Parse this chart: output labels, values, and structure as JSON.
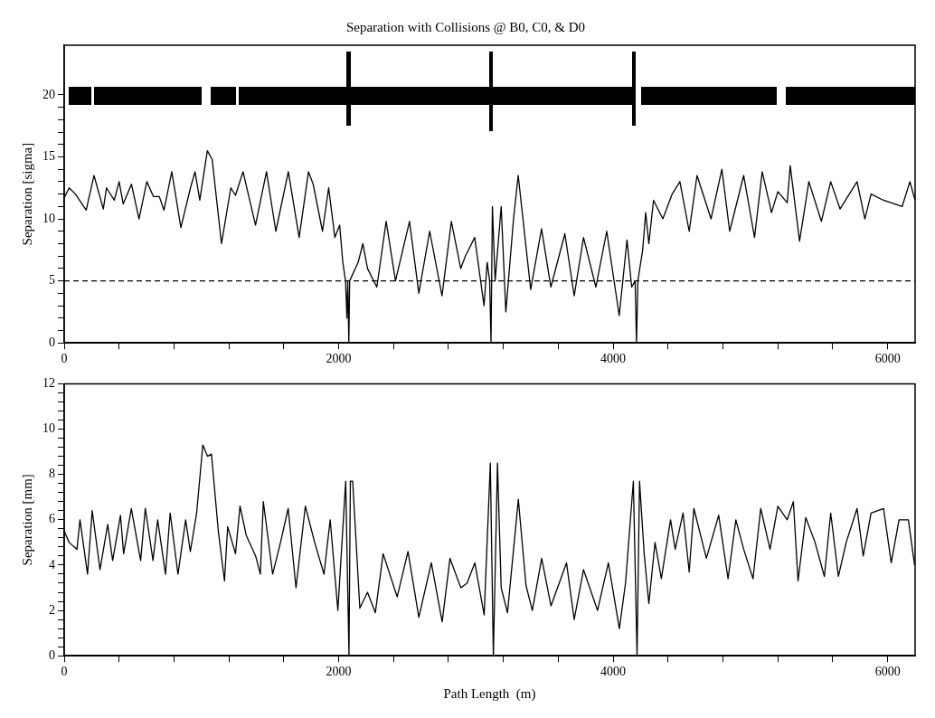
{
  "chart_data": [
    {
      "type": "line",
      "title": "Separation with Collisions @ B0, C0, & D0",
      "ylabel": "Separation [sigma]",
      "marker": "none",
      "grid": false,
      "legend": false,
      "xlim": [
        0,
        6200
      ],
      "ylim": [
        0,
        24
      ],
      "xticks": [
        0,
        {
          "value": 400,
          "label": null
        },
        {
          "value": 800,
          "label": null
        },
        {
          "value": 1200,
          "label": null
        },
        {
          "value": 1600,
          "label": null
        },
        2000,
        {
          "value": 2400,
          "label": null
        },
        {
          "value": 2800,
          "label": null
        },
        {
          "value": 3200,
          "label": null
        },
        {
          "value": 3600,
          "label": null
        },
        4000,
        {
          "value": 4400,
          "label": null
        },
        {
          "value": 4800,
          "label": null
        },
        {
          "value": 5200,
          "label": null
        },
        {
          "value": 5600,
          "label": null
        },
        6000
      ],
      "yticks": [
        0,
        {
          "value": 1,
          "label": null
        },
        {
          "value": 2,
          "label": null
        },
        {
          "value": 3,
          "label": null
        },
        {
          "value": 4,
          "label": null
        },
        5,
        {
          "value": 6,
          "label": null
        },
        {
          "value": 7,
          "label": null
        },
        {
          "value": 8,
          "label": null
        },
        {
          "value": 9,
          "label": null
        },
        10,
        {
          "value": 11,
          "label": null
        },
        {
          "value": 12,
          "label": null
        },
        {
          "value": 13,
          "label": null
        },
        {
          "value": 14,
          "label": null
        },
        15,
        {
          "value": 16,
          "label": null
        },
        {
          "value": 17,
          "label": null
        },
        {
          "value": 18,
          "label": null
        },
        {
          "value": 19,
          "label": null
        },
        20
      ],
      "ref_lines": [
        {
          "axis": "y",
          "value": 5,
          "color": "#000000",
          "line_style": "dashed"
        }
      ],
      "series": [
        {
          "color": "#000000",
          "x": [
            0,
            36,
            82,
            160,
            217,
            285,
            308,
            365,
            400,
            430,
            490,
            545,
            602,
            650,
            693,
            727,
            784,
            850,
            920,
            953,
            988,
            1043,
            1078,
            1146,
            1214,
            1248,
            1303,
            1394,
            1474,
            1542,
            1633,
            1712,
            1780,
            1814,
            1882,
            1927,
            1972,
            2007,
            2030,
            2050,
            2060,
            2066,
            2074,
            2080,
            2142,
            2176,
            2210,
            2278,
            2346,
            2414,
            2516,
            2584,
            2663,
            2753,
            2821,
            2889,
            2923,
            2991,
            3059,
            3082,
            3100,
            3110,
            3120,
            3140,
            3184,
            3218,
            3274,
            3308,
            3399,
            3478,
            3546,
            3648,
            3716,
            3784,
            3874,
            3953,
            4044,
            4101,
            4135,
            4160,
            4170,
            4180,
            4215,
            4237,
            4260,
            4294,
            4362,
            4430,
            4486,
            4554,
            4611,
            4713,
            4792,
            4849,
            4951,
            5030,
            5086,
            5154,
            5200,
            5268,
            5290,
            5358,
            5426,
            5517,
            5585,
            5653,
            5777,
            5834,
            5879,
            5970,
            6106,
            6162,
            6200
          ],
          "values": [
            11.7,
            12.5,
            12,
            10.7,
            13.5,
            10.8,
            12.5,
            11.5,
            13,
            11.2,
            12.8,
            10,
            13,
            11.8,
            11.8,
            10.7,
            13.8,
            9.3,
            12.5,
            13.8,
            11.5,
            15.5,
            14.8,
            8,
            12.5,
            11.9,
            13.8,
            9.5,
            13.8,
            9,
            13.8,
            8.5,
            13.8,
            12.8,
            9,
            12.5,
            8.5,
            9.5,
            6.5,
            5,
            2,
            5,
            0,
            5,
            6.5,
            8,
            6,
            4.5,
            9.8,
            5,
            9.8,
            4,
            9,
            3.8,
            9.8,
            6,
            7,
            8.5,
            3,
            6.5,
            5,
            0,
            11,
            5,
            11,
            2.5,
            10,
            13.5,
            4.3,
            9.2,
            4.5,
            8.8,
            3.8,
            8.5,
            4.5,
            9,
            2.2,
            8.3,
            4.5,
            5,
            0,
            5,
            7.5,
            10.5,
            8,
            11.5,
            10,
            12,
            13,
            9,
            13.5,
            10,
            14,
            9,
            13.5,
            8.5,
            13.8,
            10.5,
            12.2,
            11.3,
            14.3,
            8.2,
            13,
            9.8,
            13,
            10.8,
            13,
            10,
            12,
            11.5,
            11,
            13,
            11.5
          ]
        }
      ]
    },
    {
      "type": "line",
      "xlabel": "Path Length  (m)",
      "ylabel": "Separation [mm]",
      "marker": "none",
      "grid": false,
      "legend": false,
      "xlim": [
        0,
        6200
      ],
      "ylim": [
        0,
        12
      ],
      "xticks": [
        0,
        {
          "value": 400,
          "label": null
        },
        {
          "value": 800,
          "label": null
        },
        {
          "value": 1200,
          "label": null
        },
        {
          "value": 1600,
          "label": null
        },
        2000,
        {
          "value": 2400,
          "label": null
        },
        {
          "value": 2800,
          "label": null
        },
        {
          "value": 3200,
          "label": null
        },
        {
          "value": 3600,
          "label": null
        },
        4000,
        {
          "value": 4400,
          "label": null
        },
        {
          "value": 4800,
          "label": null
        },
        {
          "value": 5200,
          "label": null
        },
        {
          "value": 5600,
          "label": null
        },
        6000
      ],
      "yticks": [
        0,
        {
          "value": 0.4,
          "label": null
        },
        {
          "value": 0.8,
          "label": null
        },
        {
          "value": 1.2,
          "label": null
        },
        {
          "value": 1.6,
          "label": null
        },
        2,
        {
          "value": 2.4,
          "label": null
        },
        {
          "value": 2.8,
          "label": null
        },
        {
          "value": 3.2,
          "label": null
        },
        {
          "value": 3.6,
          "label": null
        },
        4,
        {
          "value": 4.4,
          "label": null
        },
        {
          "value": 4.8,
          "label": null
        },
        {
          "value": 5.2,
          "label": null
        },
        {
          "value": 5.6,
          "label": null
        },
        6,
        {
          "value": 6.4,
          "label": null
        },
        {
          "value": 6.8,
          "label": null
        },
        {
          "value": 7.2,
          "label": null
        },
        {
          "value": 7.6,
          "label": null
        },
        8,
        {
          "value": 8.4,
          "label": null
        },
        {
          "value": 8.8,
          "label": null
        },
        {
          "value": 9.2,
          "label": null
        },
        {
          "value": 9.6,
          "label": null
        },
        10,
        {
          "value": 10.4,
          "label": null
        },
        {
          "value": 10.8,
          "label": null
        },
        {
          "value": 11.2,
          "label": null
        },
        {
          "value": 11.6,
          "label": null
        },
        12
      ],
      "series": [
        {
          "color": "#000000",
          "x": [
            0,
            36,
            93,
            115,
            170,
            204,
            261,
            317,
            353,
            410,
            433,
            489,
            557,
            591,
            647,
            681,
            738,
            772,
            829,
            885,
            919,
            965,
            1010,
            1044,
            1073,
            1123,
            1168,
            1191,
            1248,
            1281,
            1327,
            1395,
            1429,
            1451,
            1519,
            1576,
            1632,
            1689,
            1757,
            1825,
            1893,
            1938,
            1994,
            2051,
            2075,
            2085,
            2102,
            2154,
            2210,
            2267,
            2324,
            2426,
            2505,
            2584,
            2675,
            2754,
            2811,
            2890,
            2935,
            2992,
            3060,
            3105,
            3127,
            3157,
            3184,
            3230,
            3309,
            3365,
            3411,
            3479,
            3547,
            3660,
            3716,
            3784,
            3886,
            3965,
            4045,
            4090,
            4147,
            4174,
            4192,
            4226,
            4260,
            4305,
            4351,
            4418,
            4452,
            4509,
            4554,
            4588,
            4679,
            4769,
            4837,
            4894,
            4951,
            5019,
            5075,
            5143,
            5200,
            5268,
            5313,
            5347,
            5403,
            5471,
            5539,
            5585,
            5641,
            5698,
            5777,
            5822,
            5879,
            5970,
            6026,
            6083,
            6151,
            6196
          ],
          "values": [
            5.5,
            5,
            4.7,
            6,
            3.6,
            6.4,
            3.8,
            5.8,
            4.2,
            6.2,
            4.5,
            6.5,
            4.2,
            6.5,
            4.2,
            6,
            3.6,
            6.3,
            3.6,
            6,
            4.6,
            6.3,
            9.3,
            8.8,
            8.9,
            5.5,
            3.3,
            5.7,
            4.5,
            6.6,
            5.3,
            4.4,
            3.6,
            6.8,
            3.6,
            5,
            6.5,
            3,
            6.6,
            5,
            3.6,
            6,
            2,
            7.7,
            0,
            7.7,
            7.7,
            2.1,
            2.8,
            1.9,
            4.5,
            2.6,
            4.6,
            1.7,
            4.1,
            1.5,
            4.3,
            3,
            3.2,
            4.1,
            1.8,
            8.5,
            0,
            8.5,
            3,
            1.9,
            6.9,
            3.1,
            2,
            4.3,
            2.2,
            4.1,
            1.6,
            3.8,
            2,
            4.1,
            1.2,
            3.2,
            7.7,
            0,
            7.7,
            4.5,
            2.3,
            5,
            3.4,
            6,
            4.7,
            6.3,
            3.7,
            6.5,
            4.3,
            6.2,
            3.4,
            6,
            4.7,
            3.4,
            6.5,
            4.7,
            6.6,
            6,
            6.8,
            3.3,
            6.1,
            5,
            3.5,
            6.3,
            3.5,
            5,
            6.5,
            4.4,
            6.3,
            6.5,
            4.1,
            6,
            6,
            4
          ]
        }
      ]
    }
  ]
}
